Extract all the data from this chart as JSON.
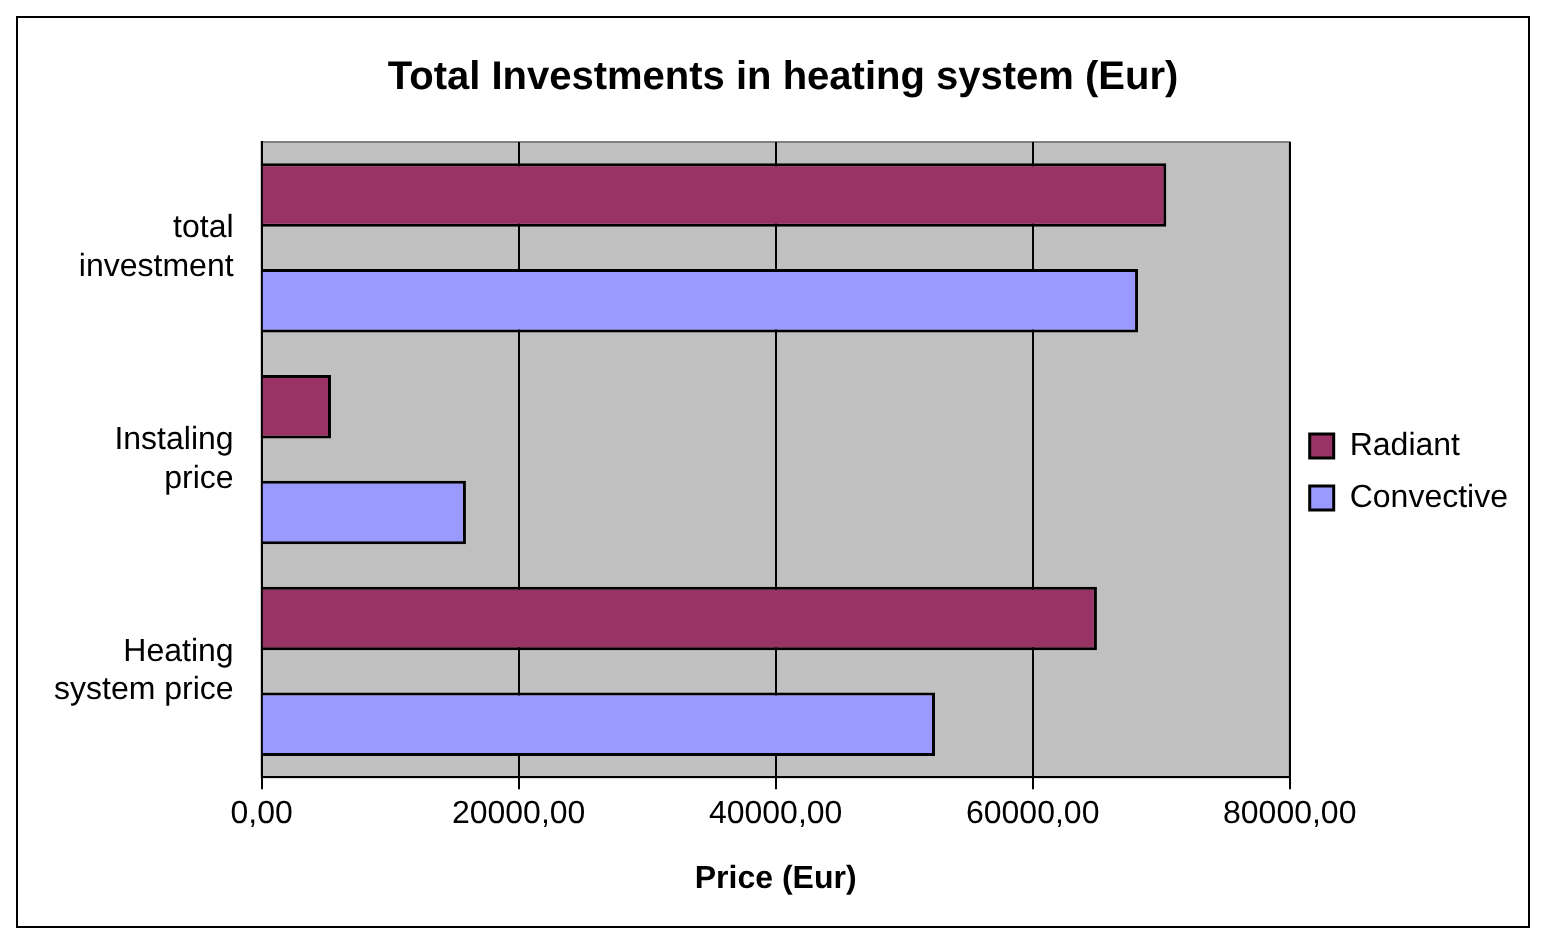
{
  "chart_data": {
    "type": "bar",
    "orientation": "horizontal",
    "title": "Total Investments in heating system (Eur)",
    "xlabel": "Price (Eur)",
    "categories": [
      "total investment",
      "Instaling price",
      "Heating system price"
    ],
    "series": [
      {
        "name": "Radiant",
        "color": "#993366",
        "values": [
          70400,
          5400,
          65000
        ]
      },
      {
        "name": "Convective",
        "color": "#9999ff",
        "values": [
          68200,
          15900,
          52400
        ]
      }
    ],
    "xlim": [
      0,
      80000
    ],
    "xticks": [
      {
        "value": 0,
        "label": "0,00"
      },
      {
        "value": 20000,
        "label": "20000,00"
      },
      {
        "value": 40000,
        "label": "40000,00"
      },
      {
        "value": 60000,
        "label": "60000,00"
      },
      {
        "value": 80000,
        "label": "80000,00"
      }
    ],
    "grid": "x",
    "legend": "right"
  }
}
